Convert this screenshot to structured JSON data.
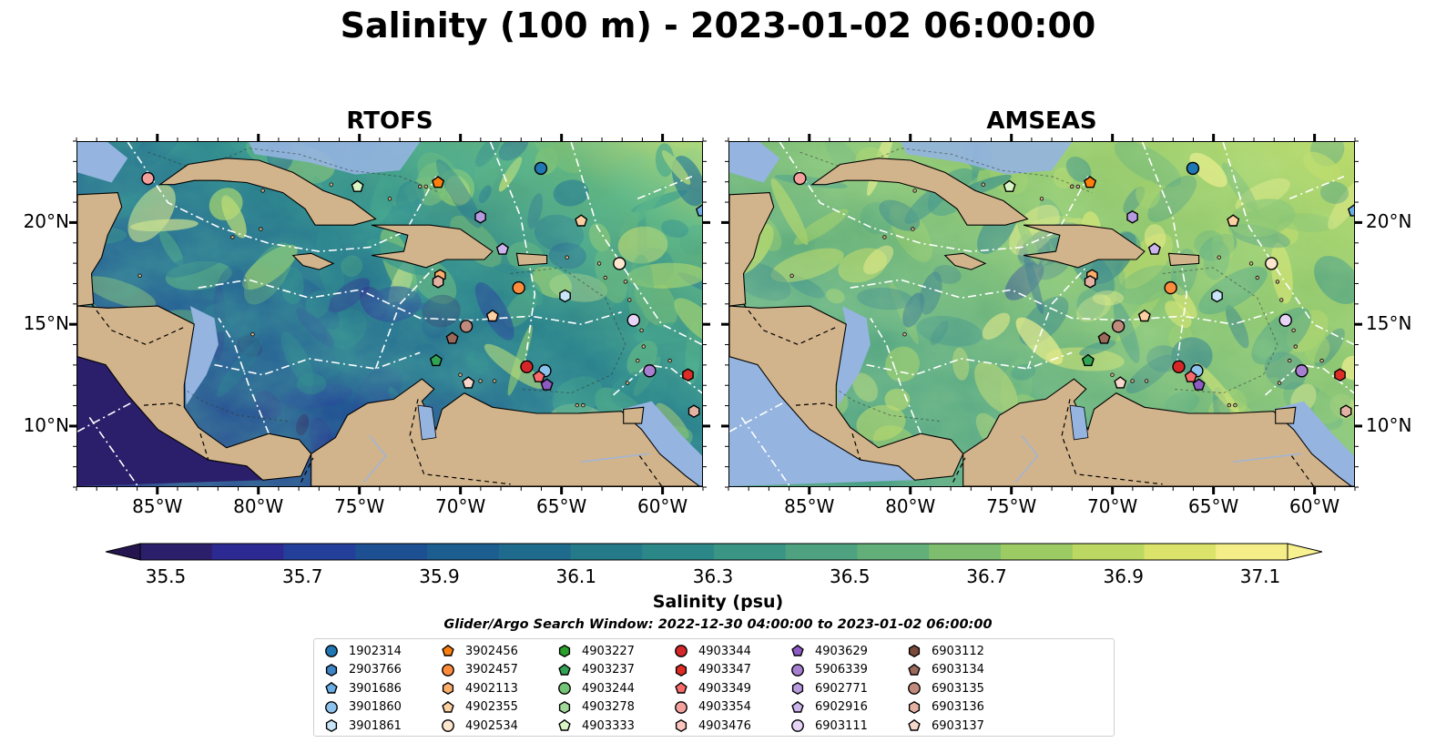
{
  "title": "Salinity (100 m) - 2023-01-02 06:00:00",
  "panels": [
    {
      "title": "RTOFS",
      "style": "rtofs"
    },
    {
      "title": "AMSEAS",
      "style": "amseas"
    }
  ],
  "map_extent": {
    "lon": [
      -89,
      -58
    ],
    "lat": [
      7,
      24
    ]
  },
  "lon_ticks": [
    {
      "value": -85,
      "label": "85°W"
    },
    {
      "value": -80,
      "label": "80°W"
    },
    {
      "value": -75,
      "label": "75°W"
    },
    {
      "value": -70,
      "label": "70°W"
    },
    {
      "value": -65,
      "label": "65°W"
    },
    {
      "value": -60,
      "label": "60°W"
    }
  ],
  "lat_ticks": [
    {
      "value": 20,
      "label": "20°N"
    },
    {
      "value": 15,
      "label": "15°N"
    },
    {
      "value": 10,
      "label": "10°N"
    }
  ],
  "colorbar": {
    "label": "Salinity (psu)",
    "min": 35.5,
    "max": 37.1,
    "ticks": [
      "35.5",
      "35.7",
      "35.9",
      "36.1",
      "36.3",
      "36.5",
      "36.7",
      "36.9",
      "37.1"
    ],
    "colors": [
      "#2b1e6b",
      "#2c2a92",
      "#243f9a",
      "#1d4f93",
      "#1c5e8f",
      "#1f6b8d",
      "#257a8a",
      "#2c8788",
      "#3a9585",
      "#4ea280",
      "#62af79",
      "#7ebd6e",
      "#9ccb64",
      "#bcd862",
      "#dbe36b",
      "#f5ee88"
    ]
  },
  "search_window": "Glider/Argo Search Window: 2022-12-30 04:00:00 to 2023-01-02 06:00:00",
  "legend": [
    {
      "id": "1902314",
      "shape": "circle",
      "color": "#1f77b4"
    },
    {
      "id": "2903766",
      "shape": "hexagon",
      "color": "#3d85c6"
    },
    {
      "id": "3901686",
      "shape": "pentagon",
      "color": "#6aaee6"
    },
    {
      "id": "3901860",
      "shape": "circle",
      "color": "#8cc3ec"
    },
    {
      "id": "3901861",
      "shape": "hexagon",
      "color": "#c8e6f8"
    },
    {
      "id": "3902456",
      "shape": "pentagon",
      "color": "#ff7f0e"
    },
    {
      "id": "3902457",
      "shape": "circle",
      "color": "#fd8d3c"
    },
    {
      "id": "4902113",
      "shape": "hexagon",
      "color": "#fdae6b"
    },
    {
      "id": "4902355",
      "shape": "pentagon",
      "color": "#fdd0a2"
    },
    {
      "id": "4902534",
      "shape": "circle",
      "color": "#fee6ce"
    },
    {
      "id": "4903227",
      "shape": "hexagon",
      "color": "#2ca02c"
    },
    {
      "id": "4903237",
      "shape": "pentagon",
      "color": "#31a354"
    },
    {
      "id": "4903244",
      "shape": "circle",
      "color": "#74c476"
    },
    {
      "id": "4903278",
      "shape": "hexagon",
      "color": "#a1d99b"
    },
    {
      "id": "4903333",
      "shape": "pentagon",
      "color": "#d9f5c5"
    },
    {
      "id": "4903344",
      "shape": "circle",
      "color": "#d62728"
    },
    {
      "id": "4903347",
      "shape": "hexagon",
      "color": "#de2d26"
    },
    {
      "id": "4903349",
      "shape": "pentagon",
      "color": "#fb6a6a"
    },
    {
      "id": "4903354",
      "shape": "circle",
      "color": "#f4a09c"
    },
    {
      "id": "4903476",
      "shape": "hexagon",
      "color": "#fcc5c0"
    },
    {
      "id": "4903629",
      "shape": "pentagon",
      "color": "#8e5bc4"
    },
    {
      "id": "5906339",
      "shape": "circle",
      "color": "#a77fd0"
    },
    {
      "id": "6902771",
      "shape": "hexagon",
      "color": "#b79be0"
    },
    {
      "id": "6902916",
      "shape": "pentagon",
      "color": "#cbb5ec"
    },
    {
      "id": "6903111",
      "shape": "circle",
      "color": "#e7d4f7"
    },
    {
      "id": "6903112",
      "shape": "hexagon",
      "color": "#7b4a3a"
    },
    {
      "id": "6903134",
      "shape": "pentagon",
      "color": "#9c6a5a"
    },
    {
      "id": "6903135",
      "shape": "circle",
      "color": "#c08b7d"
    },
    {
      "id": "6903136",
      "shape": "hexagon",
      "color": "#e3b2a3"
    },
    {
      "id": "6903137",
      "shape": "pentagon",
      "color": "#f7d7cc"
    }
  ],
  "markers": [
    {
      "id": "4903354",
      "lon": -85.5,
      "lat": 22.2
    },
    {
      "id": "4903333",
      "lon": -75.1,
      "lat": 21.8
    },
    {
      "id": "3902456",
      "lon": -71.1,
      "lat": 22.0
    },
    {
      "id": "1902314",
      "lon": -66.0,
      "lat": 22.7
    },
    {
      "id": "6902771",
      "lon": -69.0,
      "lat": 20.3
    },
    {
      "id": "4902355",
      "lon": -64.0,
      "lat": 20.1
    },
    {
      "id": "6902916",
      "lon": -67.9,
      "lat": 18.7
    },
    {
      "id": "4902534",
      "lon": -62.1,
      "lat": 18.0
    },
    {
      "id": "3902457",
      "lon": -67.1,
      "lat": 16.8
    },
    {
      "id": "3901861",
      "lon": -64.8,
      "lat": 16.4
    },
    {
      "id": "4902113",
      "lon": -71.0,
      "lat": 17.4
    },
    {
      "id": "6903136",
      "lon": -71.1,
      "lat": 17.1
    },
    {
      "id": "6903111",
      "lon": -61.4,
      "lat": 15.2
    },
    {
      "id": "4902355",
      "lon": -68.4,
      "lat": 15.4
    },
    {
      "id": "6903135",
      "lon": -69.7,
      "lat": 14.9
    },
    {
      "id": "6903134",
      "lon": -70.4,
      "lat": 14.3
    },
    {
      "id": "4903237",
      "lon": -71.2,
      "lat": 13.2
    },
    {
      "id": "4903344",
      "lon": -66.7,
      "lat": 12.9
    },
    {
      "id": "3901860",
      "lon": -65.8,
      "lat": 12.7
    },
    {
      "id": "4903349",
      "lon": -66.1,
      "lat": 12.4
    },
    {
      "id": "4903629",
      "lon": -65.7,
      "lat": 12.0
    },
    {
      "id": "6903137",
      "lon": -69.6,
      "lat": 12.1
    },
    {
      "id": "5906339",
      "lon": -60.6,
      "lat": 12.7
    },
    {
      "id": "4903347",
      "lon": -58.7,
      "lat": 12.5
    },
    {
      "id": "6903136",
      "lon": -58.4,
      "lat": 10.7
    },
    {
      "id": "3901686",
      "lon": -58.0,
      "lat": 20.6
    }
  ]
}
